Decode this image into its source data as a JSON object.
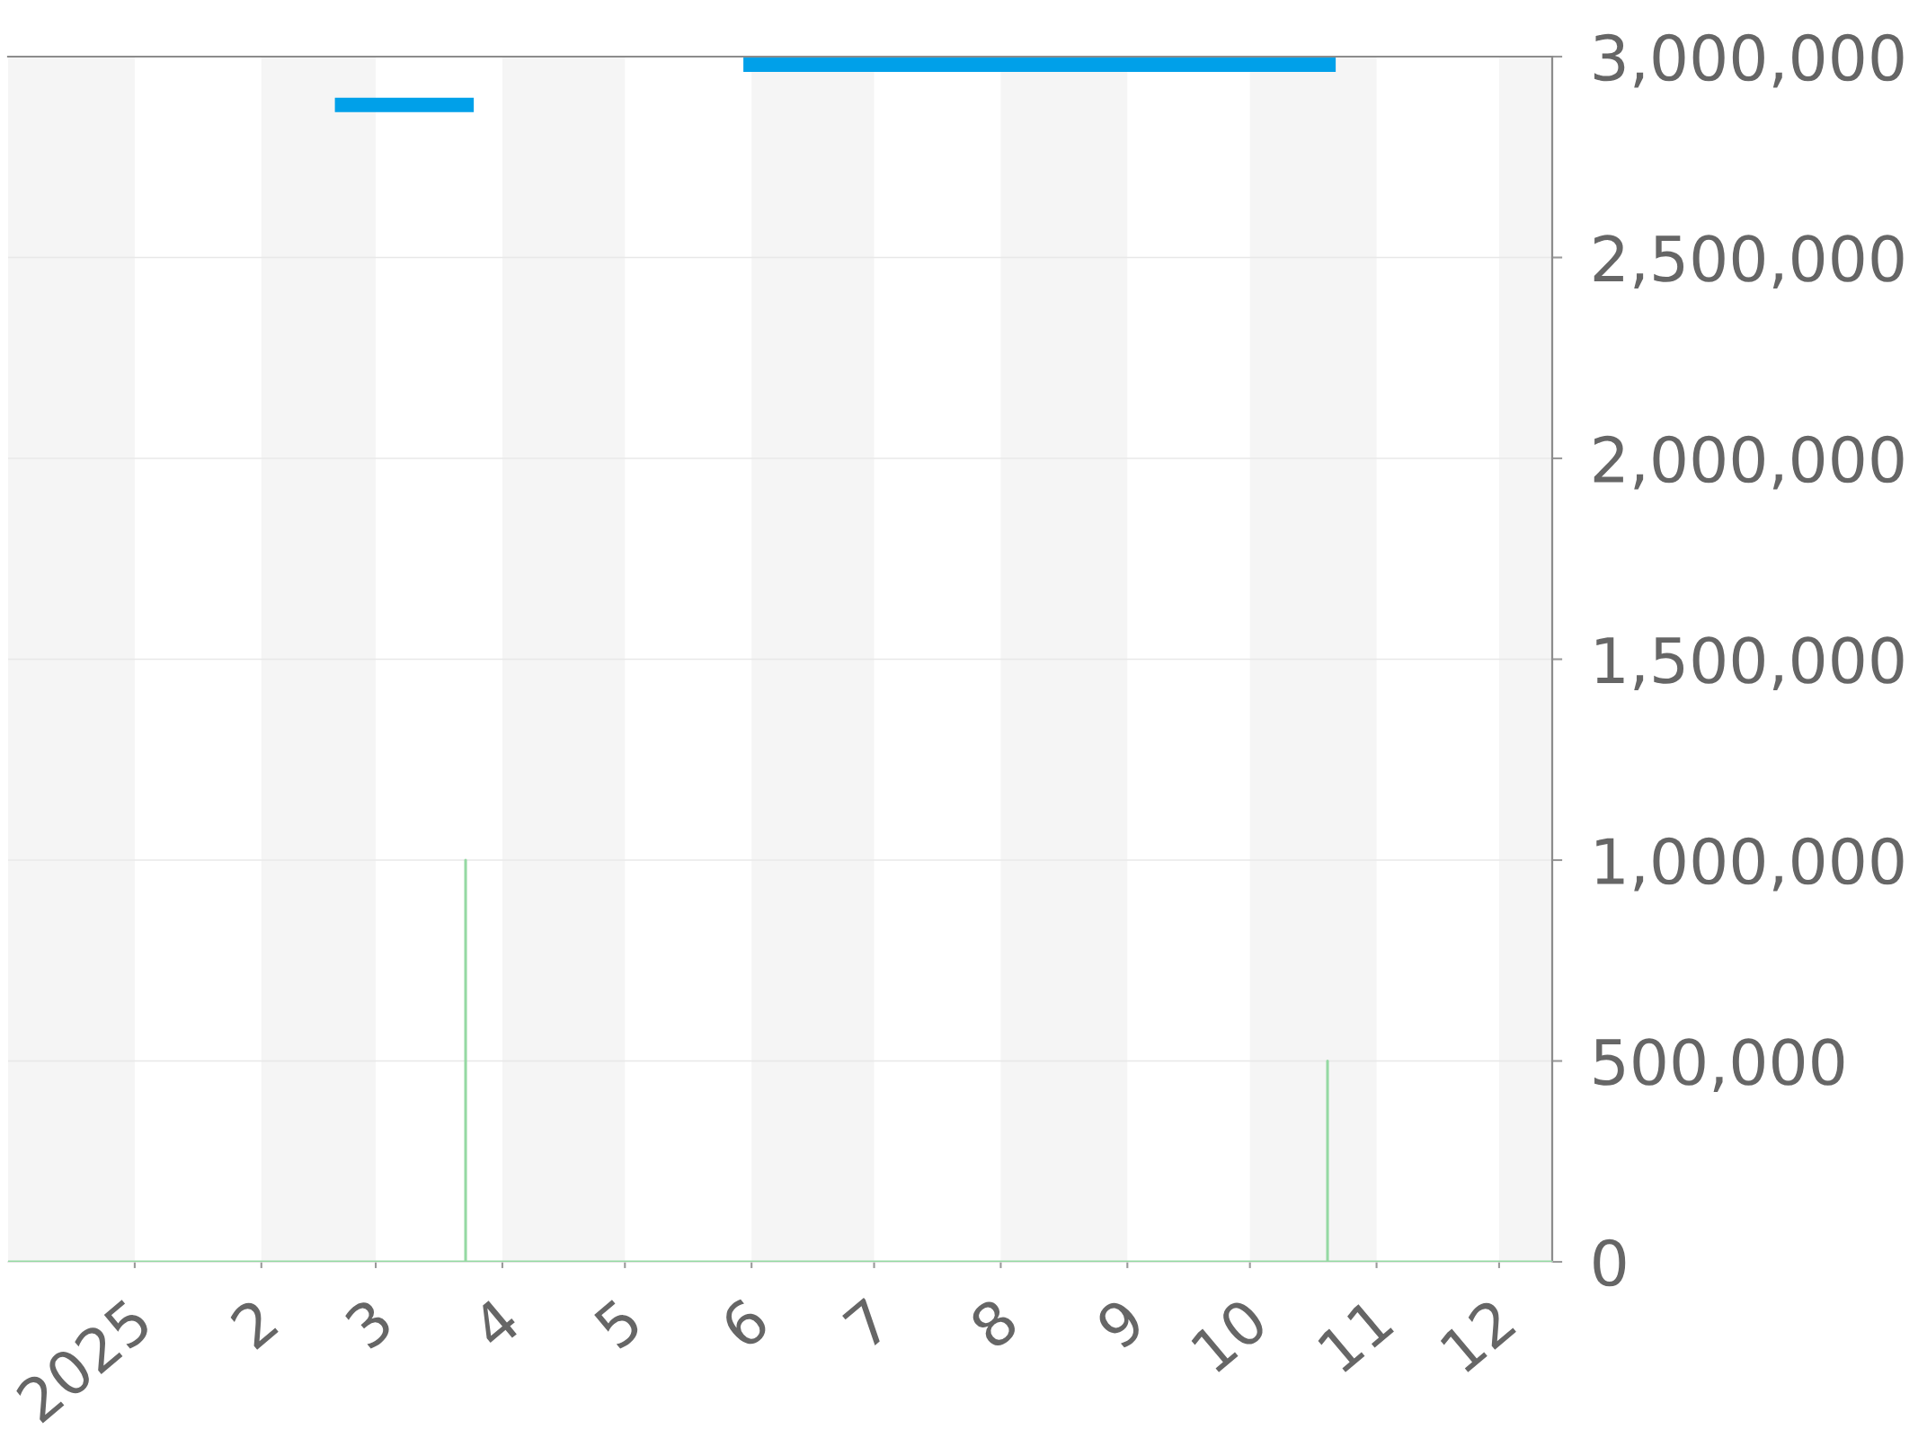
{
  "chart_data": {
    "type": "line",
    "xlim": [
      "2024-12-01",
      "2025-12-14"
    ],
    "xticks": [
      {
        "value": "2025-01-01",
        "label": "2025"
      },
      {
        "value": "2025-02-01",
        "label": "2"
      },
      {
        "value": "2025-03-01",
        "label": "3"
      },
      {
        "value": "2025-04-01",
        "label": "4"
      },
      {
        "value": "2025-05-01",
        "label": "5"
      },
      {
        "value": "2025-06-01",
        "label": "6"
      },
      {
        "value": "2025-07-01",
        "label": "7"
      },
      {
        "value": "2025-08-01",
        "label": "8"
      },
      {
        "value": "2025-09-01",
        "label": "9"
      },
      {
        "value": "2025-10-01",
        "label": "10"
      },
      {
        "value": "2025-11-01",
        "label": "11"
      },
      {
        "value": "2025-12-01",
        "label": "12"
      }
    ],
    "ylim": [
      0,
      3000000
    ],
    "yticks": [
      0,
      {
        "value": 500000,
        "label": "500,000"
      },
      {
        "value": 1000000,
        "label": "1,000,000"
      },
      {
        "value": 1500000,
        "label": "1,500,000"
      },
      {
        "value": 2000000,
        "label": "2,000,000"
      },
      {
        "value": 2500000,
        "label": "2,500,000"
      },
      {
        "value": 3000000,
        "label": "3,000,000"
      }
    ],
    "grid": "y",
    "bands": [
      {
        "axis": "x",
        "from": "2024-12-01",
        "to": "2025-01-01",
        "color": "#f5f5f5"
      },
      {
        "axis": "x",
        "from": "2025-02-01",
        "to": "2025-03-01",
        "color": "#f5f5f5"
      },
      {
        "axis": "x",
        "from": "2025-04-01",
        "to": "2025-05-01",
        "color": "#f5f5f5"
      },
      {
        "axis": "x",
        "from": "2025-06-01",
        "to": "2025-07-01",
        "color": "#f5f5f5"
      },
      {
        "axis": "x",
        "from": "2025-08-01",
        "to": "2025-09-01",
        "color": "#f5f5f5"
      },
      {
        "axis": "x",
        "from": "2025-10-01",
        "to": "2025-11-01",
        "color": "#f5f5f5"
      },
      {
        "axis": "x",
        "from": "2025-12-01",
        "to": "2025-12-14",
        "color": "#f5f5f5"
      }
    ],
    "series": [
      {
        "color": "#95d9a3",
        "x": [
          "2024-12-01",
          "2025-03-23",
          "2025-03-23",
          "2025-03-23",
          "2025-10-20",
          "2025-10-20",
          "2025-10-20",
          "2025-12-14"
        ],
        "values": [
          0,
          0,
          1000000,
          0,
          0,
          500000,
          0,
          0
        ]
      },
      {
        "color": "#00a0e9",
        "x": [
          "2025-02-19",
          "2025-03-25",
          "2025-04-25",
          "2025-05-30",
          "2025-10-22"
        ],
        "values": [
          2880000,
          2880000,
          null,
          2980000,
          2980000
        ]
      }
    ]
  }
}
